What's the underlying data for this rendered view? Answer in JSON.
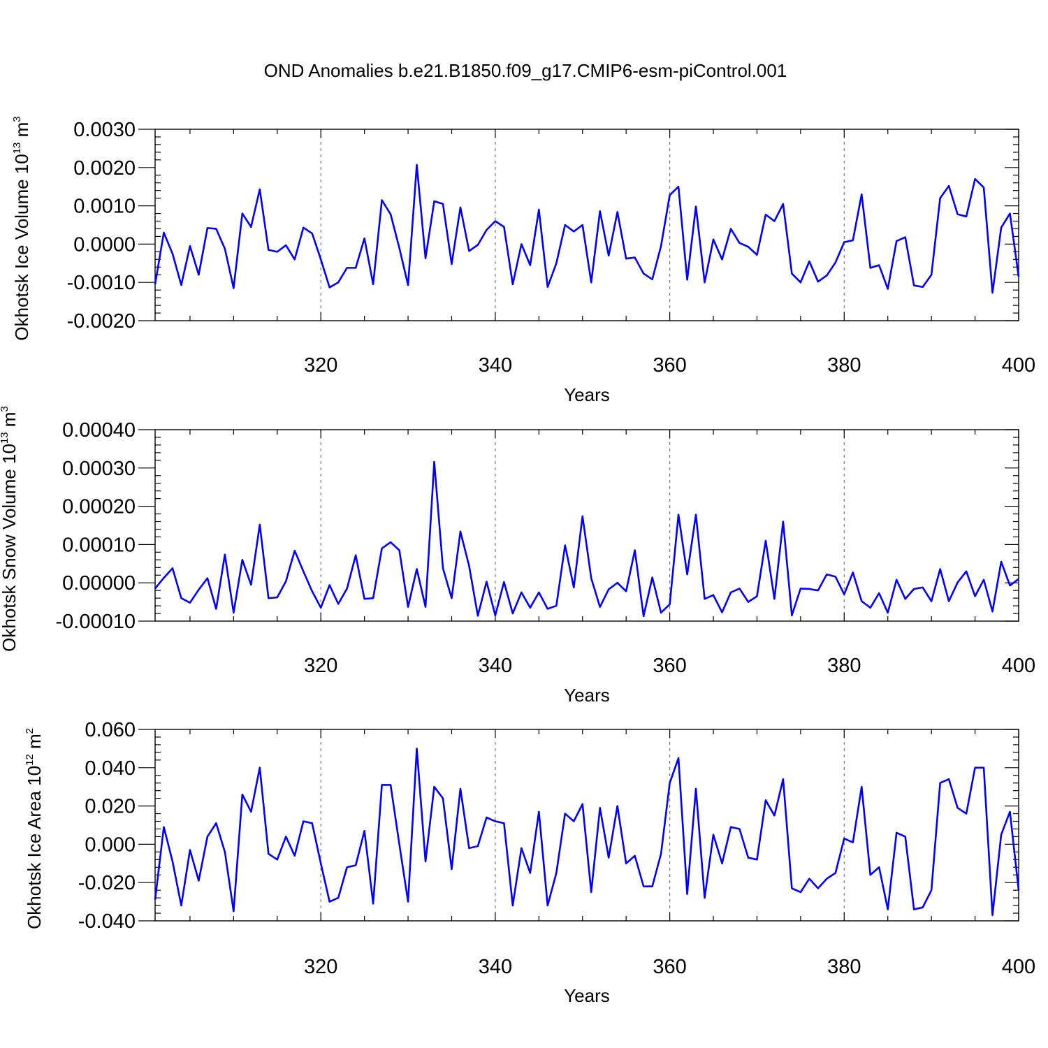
{
  "figure": {
    "title": "OND Anomalies b.e21.B1850.f09_g17.CMIP6-esm-piControl.001",
    "series_color": "#0000ff"
  },
  "chart_data": [
    {
      "type": "line",
      "xlabel": "Years",
      "ylabel": {
        "text": "Okhotsk Ice Volume 10",
        "sup": "13",
        "unit": " m",
        "unit_sup": "3"
      },
      "xlim": [
        301,
        400
      ],
      "ylim": [
        -0.002,
        0.003
      ],
      "xticks": [
        320,
        340,
        360,
        380,
        400
      ],
      "yticks": [
        -0.002,
        -0.001,
        0.0,
        0.001,
        0.002,
        0.003
      ],
      "ytick_labels": [
        "-0.0020",
        "-0.0010",
        "0.0000",
        "0.0010",
        "0.0020",
        "0.0030"
      ],
      "grid_x": [
        320,
        340,
        360,
        380
      ],
      "y": [
        -0.00105,
        0.0003,
        -0.00025,
        -0.00107,
        -5e-05,
        -0.0008,
        0.00042,
        0.0004,
        -0.00012,
        -0.00115,
        0.0008,
        0.00045,
        0.00143,
        -0.00015,
        -0.0002,
        -3e-05,
        -0.0004,
        0.00043,
        0.00028,
        -0.0004,
        -0.00113,
        -0.001,
        -0.00062,
        -0.00062,
        0.00015,
        -0.00105,
        0.00115,
        0.00078,
        -0.0001,
        -0.00107,
        0.00207,
        -0.00037,
        0.00112,
        0.00105,
        -0.00052,
        0.00096,
        -0.00018,
        -2e-05,
        0.00037,
        0.0006,
        0.00045,
        -0.00105,
        0.0,
        -0.00055,
        0.0009,
        -0.00112,
        -0.0005,
        0.0005,
        0.00033,
        0.0005,
        -0.001,
        0.00086,
        -0.0003,
        0.00084,
        -0.00038,
        -0.00035,
        -0.00077,
        -0.00092,
        -5e-05,
        0.00128,
        0.0015,
        -0.00093,
        0.00098,
        -0.001,
        0.00012,
        -0.0004,
        0.0004,
        3e-05,
        -7e-05,
        -0.00028,
        0.00077,
        0.0006,
        0.00105,
        -0.00077,
        -0.001,
        -0.00045,
        -0.00098,
        -0.00082,
        -0.00048,
        5e-05,
        0.0001,
        0.0013,
        -0.00062,
        -0.00055,
        -0.00117,
        8e-05,
        0.00018,
        -0.00108,
        -0.00112,
        -0.0008,
        0.0012,
        0.00152,
        0.00078,
        0.00072,
        0.0017,
        0.00148,
        -0.00127,
        0.00043,
        0.0008,
        -0.00085
      ]
    },
    {
      "type": "line",
      "xlabel": "Years",
      "ylabel": {
        "text": "Okhotsk Snow Volume 10",
        "sup": "13",
        "unit": " m",
        "unit_sup": "3"
      },
      "xlim": [
        301,
        400
      ],
      "ylim": [
        -0.0001,
        0.0004
      ],
      "xticks": [
        320,
        340,
        360,
        380,
        400
      ],
      "yticks": [
        -0.0001,
        0.0,
        0.0001,
        0.0002,
        0.0003,
        0.0004
      ],
      "ytick_labels": [
        "-0.00010",
        "0.00000",
        "0.00010",
        "0.00020",
        "0.00030",
        "0.00040"
      ],
      "grid_x": [
        320,
        340,
        360,
        380
      ],
      "y": [
        -1.5e-05,
        1.3e-05,
        3.8e-05,
        -4e-05,
        -5.2e-05,
        -1.8e-05,
        1.2e-05,
        -6.8e-05,
        7.4e-05,
        -7.8e-05,
        6e-05,
        -5e-06,
        0.000152,
        -4e-05,
        -3.8e-05,
        4e-06,
        8.4e-05,
        3e-05,
        -2.2e-05,
        -6.5e-05,
        -6e-06,
        -5.5e-05,
        -1.5e-05,
        7.2e-05,
        -4.2e-05,
        -4e-05,
        9e-05,
        0.000106,
        8.5e-05,
        -6.3e-05,
        3.6e-05,
        -6.3e-05,
        0.000316,
        3.8e-05,
        -4e-05,
        0.000134,
        4.4e-05,
        -8.6e-05,
        3e-06,
        -8.5e-05,
        2e-06,
        -8e-05,
        -2.5e-05,
        -6.5e-05,
        -2.5e-05,
        -6.8e-05,
        -6e-05,
        9.8e-05,
        -1.2e-05,
        0.000174,
        1.2e-05,
        -6.3e-05,
        -1.7e-05,
        0.0,
        -2.2e-05,
        8.5e-05,
        -8.7e-05,
        1.4e-05,
        -7.8e-05,
        -5.6e-05,
        0.000178,
        2.2e-05,
        0.000178,
        -4.2e-05,
        -3.2e-05,
        -7.7e-05,
        -2.5e-05,
        -1.5e-05,
        -5e-05,
        -3.5e-05,
        0.00011,
        -4.2e-05,
        0.00016,
        -8.5e-05,
        -1.5e-05,
        -1.6e-05,
        -2e-05,
        2.2e-05,
        1.6e-05,
        -3e-05,
        2.7e-05,
        -4.8e-05,
        -6.5e-05,
        -2.7e-05,
        -7.8e-05,
        8e-06,
        -4.2e-05,
        -1.6e-05,
        -1.2e-05,
        -4.8e-05,
        3.6e-05,
        -4.8e-05,
        1e-06,
        3e-05,
        -3.5e-05,
        8e-06,
        -7.5e-05,
        5.5e-05,
        -7e-06,
        1e-05
      ]
    },
    {
      "type": "line",
      "xlabel": "Years",
      "ylabel": {
        "text": "Okhotsk Ice Area 10",
        "sup": "12",
        "unit": " m",
        "unit_sup": "2"
      },
      "xlim": [
        301,
        400
      ],
      "ylim": [
        -0.04,
        0.06
      ],
      "xticks": [
        320,
        340,
        360,
        380,
        400
      ],
      "yticks": [
        -0.04,
        -0.02,
        0.0,
        0.02,
        0.04,
        0.06
      ],
      "ytick_labels": [
        "-0.040",
        "-0.020",
        "0.000",
        "0.020",
        "0.040",
        "0.060"
      ],
      "grid_x": [
        320,
        340,
        360,
        380
      ],
      "y": [
        -0.029,
        0.009,
        -0.009,
        -0.032,
        -0.003,
        -0.019,
        0.004,
        0.011,
        -0.004,
        -0.035,
        0.026,
        0.017,
        0.04,
        -0.005,
        -0.008,
        0.004,
        -0.006,
        0.012,
        0.011,
        -0.01,
        -0.03,
        -0.028,
        -0.012,
        -0.011,
        0.007,
        -0.031,
        0.031,
        0.031,
        0.0,
        -0.03,
        0.05,
        -0.009,
        0.03,
        0.024,
        -0.013,
        0.029,
        -0.002,
        -0.001,
        0.014,
        0.012,
        0.011,
        -0.032,
        -0.002,
        -0.015,
        0.017,
        -0.032,
        -0.015,
        0.016,
        0.012,
        0.021,
        -0.025,
        0.019,
        -0.007,
        0.02,
        -0.01,
        -0.006,
        -0.022,
        -0.022,
        -0.005,
        0.032,
        0.045,
        -0.026,
        0.029,
        -0.028,
        0.005,
        -0.01,
        0.009,
        0.008,
        -0.007,
        -0.008,
        0.023,
        0.015,
        0.034,
        -0.023,
        -0.025,
        -0.018,
        -0.023,
        -0.018,
        -0.015,
        0.003,
        0.001,
        0.03,
        -0.016,
        -0.012,
        -0.034,
        0.006,
        0.004,
        -0.034,
        -0.033,
        -0.024,
        0.032,
        0.034,
        0.019,
        0.016,
        0.04,
        0.04,
        -0.037,
        0.005,
        0.017,
        -0.024
      ]
    }
  ]
}
